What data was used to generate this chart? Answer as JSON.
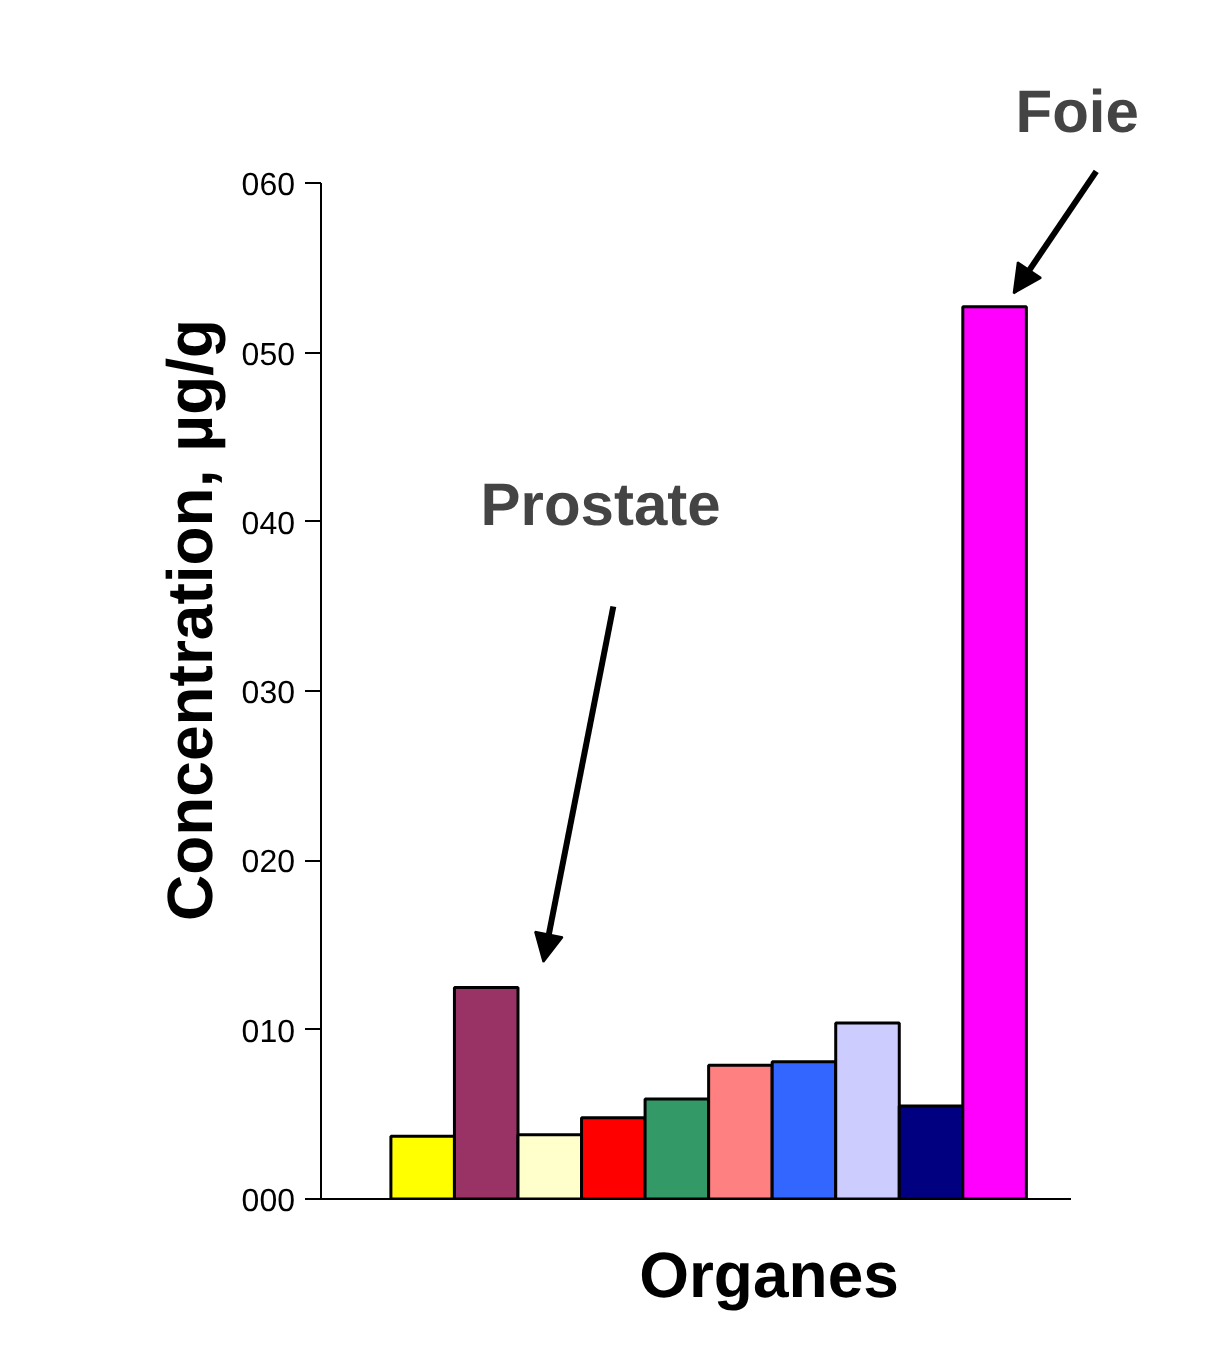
{
  "chart_data": {
    "type": "bar",
    "xlabel": "Organes",
    "ylabel": "Concentration, µg/g",
    "categories": [
      null,
      null,
      null,
      null,
      null,
      null,
      null,
      null,
      null,
      null
    ],
    "values": [
      3.7,
      12.5,
      3.8,
      4.8,
      5.9,
      7.9,
      8.1,
      10.4,
      5.5,
      52.7
    ],
    "colors": [
      "#ffff00",
      "#993366",
      "#ffffcc",
      "#ff0000",
      "#339966",
      "#ff8080",
      "#3366ff",
      "#ccccff",
      "#000080",
      "#ff00ff"
    ],
    "ylim": [
      0,
      60
    ],
    "yticks": [
      {
        "value": 0,
        "label": "000"
      },
      {
        "value": 10,
        "label": "010"
      },
      {
        "value": 20,
        "label": "020"
      },
      {
        "value": 30,
        "label": "030"
      },
      {
        "value": 40,
        "label": "040"
      },
      {
        "value": 50,
        "label": "050"
      },
      {
        "value": 60,
        "label": "060"
      }
    ],
    "annotations": [
      "Prostate",
      "Foie"
    ],
    "grid": false
  }
}
